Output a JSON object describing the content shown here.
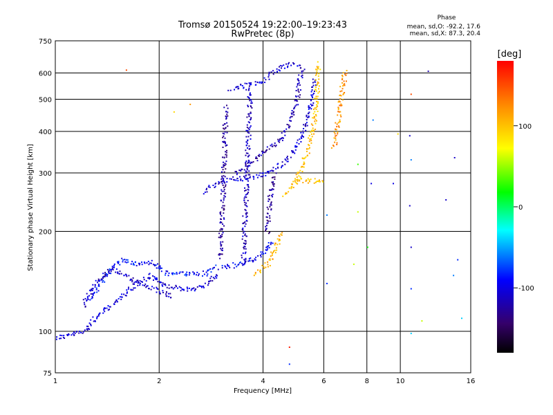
{
  "chart_data": {
    "type": "scatter",
    "title": "Tromsø 20150524 19:22:00–19:23:43",
    "subtitle": "RwPretec (8p)",
    "xlabel": "Frequency [MHz]",
    "ylabel": "Stationary phase Virtual Height [km]",
    "x_scale": "log",
    "y_scale": "log",
    "xlim": [
      1,
      16
    ],
    "ylim": [
      75,
      750
    ],
    "x_ticks": [
      1,
      2,
      4,
      6,
      8,
      10,
      16
    ],
    "y_ticks": [
      75,
      100,
      200,
      300,
      400,
      500,
      600,
      750
    ],
    "x_grid": [
      2,
      4,
      6,
      8,
      10
    ],
    "y_grid": [
      100,
      200,
      300,
      400,
      500,
      600
    ],
    "grid": true,
    "phase_box": {
      "title": "Phase",
      "line1": "mean, sd,O: -92.2, 17.6",
      "line2": "mean, sd,X: 87.3, 20.4"
    },
    "colorbar": {
      "label": "[deg]",
      "range": [
        -180,
        180
      ],
      "ticks": [
        "100",
        "0",
        "-100"
      ],
      "tick_values": [
        100,
        0,
        -100
      ]
    },
    "series_traces": [
      {
        "phase": -105,
        "points": [
          [
            1.0,
            96
          ],
          [
            1.1,
            98
          ],
          [
            1.2,
            100
          ],
          [
            1.3,
            110
          ],
          [
            1.45,
            120
          ],
          [
            1.6,
            132
          ],
          [
            1.75,
            142
          ],
          [
            1.9,
            148
          ],
          [
            2.0,
            140
          ],
          [
            2.1,
            138
          ],
          [
            2.3,
            134
          ],
          [
            2.6,
            136
          ],
          [
            2.8,
            142
          ],
          [
            2.95,
            150
          ]
        ]
      },
      {
        "phase": -90,
        "points": [
          [
            1.25,
            125
          ],
          [
            1.4,
            150
          ],
          [
            1.55,
            165
          ],
          [
            1.7,
            160
          ],
          [
            1.9,
            162
          ],
          [
            2.1,
            150
          ],
          [
            2.4,
            150
          ],
          [
            2.7,
            150
          ],
          [
            2.9,
            158
          ]
        ]
      },
      {
        "phase": -110,
        "points": [
          [
            1.2,
            120
          ],
          [
            1.3,
            140
          ],
          [
            1.45,
            155
          ],
          [
            1.6,
            148
          ],
          [
            1.8,
            138
          ],
          [
            2.0,
            132
          ],
          [
            2.2,
            128
          ]
        ]
      },
      {
        "phase": -95,
        "points": [
          [
            3.0,
            155
          ],
          [
            3.2,
            158
          ],
          [
            3.4,
            160
          ],
          [
            3.6,
            163
          ],
          [
            3.8,
            167
          ],
          [
            3.95,
            172
          ],
          [
            4.1,
            180
          ],
          [
            4.25,
            190
          ]
        ]
      },
      {
        "phase": -125,
        "points": [
          [
            3.0,
            168
          ],
          [
            3.02,
            200
          ],
          [
            3.04,
            240
          ],
          [
            3.06,
            290
          ],
          [
            3.08,
            350
          ],
          [
            3.1,
            420
          ],
          [
            3.12,
            480
          ]
        ]
      },
      {
        "phase": -115,
        "points": [
          [
            3.5,
            160
          ],
          [
            3.52,
            200
          ],
          [
            3.55,
            240
          ],
          [
            3.58,
            280
          ],
          [
            3.6,
            340
          ],
          [
            3.62,
            420
          ],
          [
            3.65,
            500
          ],
          [
            3.6,
            550
          ]
        ]
      },
      {
        "phase": -130,
        "points": [
          [
            4.1,
            200
          ],
          [
            4.15,
            240
          ],
          [
            4.2,
            270
          ],
          [
            4.25,
            285
          ],
          [
            4.3,
            300
          ]
        ]
      },
      {
        "phase": -105,
        "points": [
          [
            2.7,
            265
          ],
          [
            2.9,
            280
          ],
          [
            3.2,
            290
          ],
          [
            3.5,
            290
          ],
          [
            3.8,
            295
          ],
          [
            4.1,
            300
          ],
          [
            4.5,
            320
          ],
          [
            4.8,
            345
          ],
          [
            5.1,
            380
          ],
          [
            5.3,
            420
          ],
          [
            5.45,
            470
          ],
          [
            5.55,
            520
          ],
          [
            5.6,
            580
          ]
        ]
      },
      {
        "phase": -120,
        "points": [
          [
            3.3,
            300
          ],
          [
            3.6,
            320
          ],
          [
            3.9,
            340
          ],
          [
            4.2,
            360
          ],
          [
            4.5,
            380
          ],
          [
            4.8,
            430
          ],
          [
            5.0,
            500
          ],
          [
            5.1,
            580
          ],
          [
            5.2,
            630
          ]
        ]
      },
      {
        "phase": -105,
        "points": [
          [
            3.2,
            540
          ],
          [
            3.4,
            545
          ],
          [
            3.6,
            555
          ],
          [
            3.8,
            560
          ],
          [
            4.0,
            570
          ],
          [
            4.2,
            600
          ],
          [
            4.5,
            630
          ],
          [
            4.8,
            640
          ],
          [
            5.1,
            630
          ]
        ]
      },
      {
        "phase": 100,
        "points": [
          [
            4.6,
            260
          ],
          [
            4.8,
            270
          ],
          [
            5.0,
            290
          ],
          [
            5.2,
            320
          ],
          [
            5.4,
            360
          ],
          [
            5.6,
            420
          ],
          [
            5.7,
            500
          ],
          [
            5.75,
            600
          ],
          [
            5.7,
            650
          ]
        ]
      },
      {
        "phase": 100,
        "points": [
          [
            4.9,
            285
          ],
          [
            5.2,
            285
          ],
          [
            5.5,
            285
          ],
          [
            5.8,
            285
          ],
          [
            5.9,
            288
          ]
        ]
      },
      {
        "phase": 120,
        "points": [
          [
            6.4,
            360
          ],
          [
            6.5,
            400
          ],
          [
            6.6,
            450
          ],
          [
            6.7,
            500
          ],
          [
            6.8,
            560
          ],
          [
            6.9,
            620
          ]
        ]
      },
      {
        "phase": 110,
        "points": [
          [
            3.8,
            150
          ],
          [
            3.95,
            155
          ],
          [
            4.1,
            160
          ],
          [
            4.25,
            170
          ],
          [
            4.4,
            185
          ],
          [
            4.5,
            200
          ]
        ]
      }
    ],
    "scatter_points": [
      [
        1.6,
        615,
        150
      ],
      [
        2.45,
        485,
        120
      ],
      [
        4.75,
        90,
        170
      ],
      [
        4.75,
        80,
        -80
      ],
      [
        8.2,
        280,
        -100
      ],
      [
        8.3,
        435,
        -60
      ],
      [
        10.7,
        520,
        150
      ],
      [
        10.6,
        390,
        -110
      ],
      [
        10.7,
        330,
        -60
      ],
      [
        10.6,
        240,
        -110
      ],
      [
        10.7,
        180,
        -110
      ],
      [
        10.7,
        135,
        -80
      ],
      [
        10.7,
        99,
        -40
      ],
      [
        12.0,
        610,
        -120
      ],
      [
        13.5,
        250,
        -110
      ],
      [
        14.3,
        335,
        -110
      ],
      [
        14.6,
        165,
        -80
      ],
      [
        15.0,
        110,
        -40
      ],
      [
        14.2,
        148,
        -60
      ],
      [
        11.5,
        108,
        60
      ],
      [
        9.5,
        280,
        -100
      ],
      [
        9.8,
        395,
        90
      ],
      [
        7.3,
        160,
        60
      ],
      [
        7.5,
        230,
        60
      ],
      [
        2.2,
        460,
        90
      ],
      [
        6.1,
        140,
        -80
      ],
      [
        7.5,
        320,
        30
      ],
      [
        6.1,
        225,
        -60
      ],
      [
        8.0,
        180,
        20
      ]
    ]
  }
}
